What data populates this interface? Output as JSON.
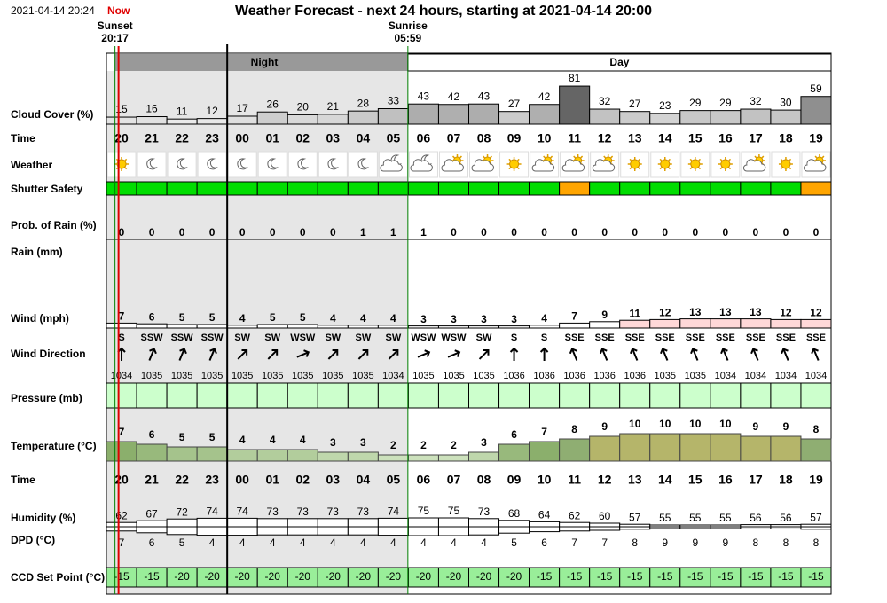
{
  "header": {
    "timestamp": "2021-04-14 20:24",
    "now": "Now",
    "title": "Weather Forecast - next 24 hours, starting at 2021-04-14 20:00"
  },
  "sunset": {
    "label": "Sunset",
    "time": "20:17"
  },
  "sunrise": {
    "label": "Sunrise",
    "time": "05:59"
  },
  "periods": {
    "night": "Night",
    "day": "Day"
  },
  "labels": {
    "cloud": "Cloud Cover (%)",
    "time": "Time",
    "weather": "Weather",
    "shutter": "Shutter Safety",
    "rain_prob": "Prob. of Rain (%)",
    "rain": "Rain (mm)",
    "wind": "Wind (mph)",
    "wind_dir": "Wind Direction",
    "pressure": "Pressure (mb)",
    "temperature": "Temperature (°C)",
    "humidity": "Humidity (%)",
    "dpd": "DPD (°C)",
    "ccd": "CCD Set Point (°C)"
  },
  "hours": [
    "20",
    "21",
    "22",
    "23",
    "00",
    "01",
    "02",
    "03",
    "04",
    "05",
    "06",
    "07",
    "08",
    "09",
    "10",
    "11",
    "12",
    "13",
    "14",
    "15",
    "16",
    "17",
    "18",
    "19"
  ],
  "cloud_cover": [
    15,
    16,
    11,
    12,
    17,
    26,
    20,
    21,
    28,
    33,
    43,
    42,
    43,
    27,
    42,
    81,
    32,
    27,
    23,
    29,
    29,
    32,
    30,
    59
  ],
  "shutter_colors": [
    "#00dd00",
    "#00dd00",
    "#00dd00",
    "#00dd00",
    "#00dd00",
    "#00dd00",
    "#00dd00",
    "#00dd00",
    "#00dd00",
    "#00dd00",
    "#00dd00",
    "#00dd00",
    "#00dd00",
    "#00dd00",
    "#00dd00",
    "#ffa500",
    "#00dd00",
    "#00dd00",
    "#00dd00",
    "#00dd00",
    "#00dd00",
    "#00dd00",
    "#00dd00",
    "#ffa500"
  ],
  "rain_probability": [
    0,
    0,
    0,
    0,
    0,
    0,
    0,
    0,
    1,
    1,
    1,
    0,
    0,
    0,
    0,
    0,
    0,
    0,
    0,
    0,
    0,
    0,
    0,
    0
  ],
  "wind": [
    7,
    6,
    5,
    5,
    4,
    5,
    5,
    4,
    4,
    4,
    3,
    3,
    3,
    3,
    4,
    7,
    9,
    11,
    12,
    13,
    13,
    13,
    12,
    12
  ],
  "wind_colors": [
    "#ffffff",
    "#ffffff",
    "#ffffff",
    "#ffffff",
    "#ffffff",
    "#ffffff",
    "#ffffff",
    "#ffffff",
    "#ffffff",
    "#ffffff",
    "#ffffff",
    "#ffffff",
    "#ffffff",
    "#ffffff",
    "#ffffff",
    "#ffffff",
    "#ffffff",
    "#ffd8d8",
    "#ffd8d8",
    "#ffd8d8",
    "#ffd8d8",
    "#ffd8d8",
    "#ffd8d8",
    "#ffd8d8"
  ],
  "wind_direction": [
    "S",
    "SSW",
    "SSW",
    "SSW",
    "SW",
    "SW",
    "WSW",
    "SW",
    "SW",
    "SW",
    "WSW",
    "WSW",
    "SW",
    "S",
    "S",
    "SSE",
    "SSE",
    "SSE",
    "SSE",
    "SSE",
    "SSE",
    "SSE",
    "SSE",
    "SSE"
  ],
  "pressure": [
    1034,
    1035,
    1035,
    1035,
    1035,
    1035,
    1035,
    1035,
    1035,
    1034,
    1035,
    1035,
    1035,
    1036,
    1036,
    1036,
    1036,
    1036,
    1035,
    1035,
    1034,
    1034,
    1034,
    1034
  ],
  "temperature": [
    7,
    6,
    5,
    5,
    4,
    4,
    4,
    3,
    3,
    2,
    2,
    2,
    3,
    6,
    7,
    8,
    9,
    10,
    10,
    10,
    10,
    9,
    9,
    8
  ],
  "humidity": [
    62,
    67,
    72,
    74,
    74,
    73,
    73,
    73,
    73,
    74,
    75,
    75,
    73,
    68,
    64,
    62,
    60,
    57,
    55,
    55,
    55,
    56,
    56,
    57
  ],
  "dpd": [
    7,
    6,
    5,
    4,
    4,
    4,
    4,
    4,
    4,
    4,
    4,
    4,
    4,
    5,
    6,
    7,
    7,
    8,
    9,
    9,
    9,
    8,
    8,
    8
  ],
  "ccd_set_point": [
    -15,
    -15,
    -20,
    -20,
    -20,
    -20,
    -20,
    -20,
    -20,
    -20,
    -20,
    -20,
    -20,
    -20,
    -15,
    -15,
    -15,
    -15,
    -15,
    -15,
    -15,
    -15,
    -15,
    -15
  ]
}
